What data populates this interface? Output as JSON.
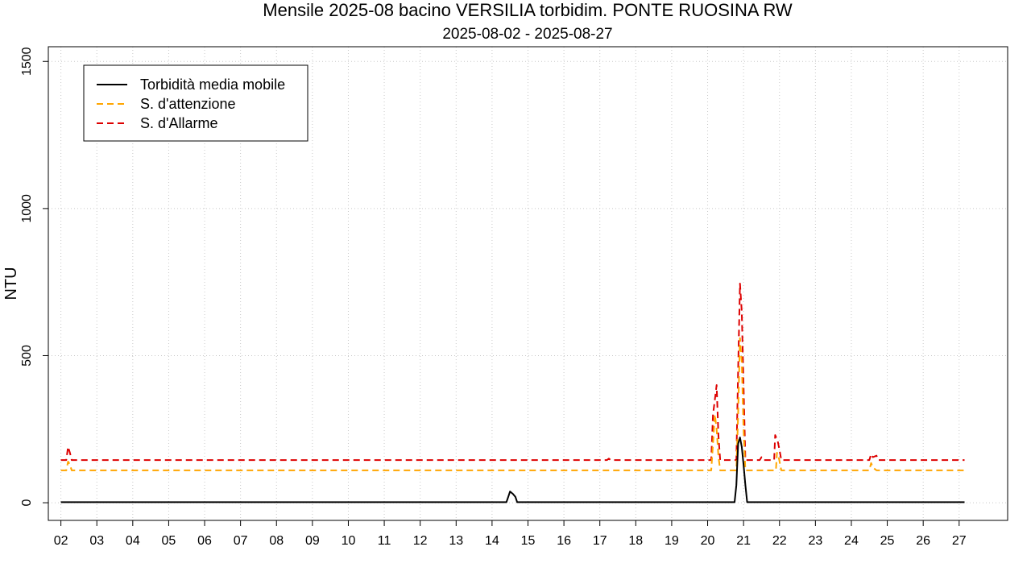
{
  "chart_data": {
    "type": "line",
    "title": "Mensile 2025-08 bacino VERSILIA torbidim. PONTE RUOSINA RW",
    "subtitle": "2025-08-02 - 2025-08-27",
    "xlabel": "",
    "ylabel": "NTU",
    "x_ticks": [
      "02",
      "03",
      "04",
      "05",
      "06",
      "07",
      "08",
      "09",
      "10",
      "11",
      "12",
      "13",
      "14",
      "15",
      "16",
      "17",
      "18",
      "19",
      "20",
      "21",
      "22",
      "23",
      "24",
      "25",
      "26",
      "27"
    ],
    "xlim": [
      1.65,
      28.35
    ],
    "ylim": [
      -60,
      1550
    ],
    "y_ticks": [
      0,
      500,
      1000,
      1500
    ],
    "grid": true,
    "legend_position": "top-left",
    "series": [
      {
        "name": "Torbidità media mobile",
        "color": "#000000",
        "dash": "solid",
        "points": [
          [
            2,
            2
          ],
          [
            14.4,
            2
          ],
          [
            14.45,
            20
          ],
          [
            14.5,
            38
          ],
          [
            14.58,
            30
          ],
          [
            14.65,
            20
          ],
          [
            14.7,
            2
          ],
          [
            20.75,
            2
          ],
          [
            20.8,
            60
          ],
          [
            20.85,
            200
          ],
          [
            20.9,
            222
          ],
          [
            20.95,
            190
          ],
          [
            21.0,
            130
          ],
          [
            21.05,
            60
          ],
          [
            21.1,
            2
          ],
          [
            27.15,
            2
          ]
        ]
      },
      {
        "name": "S. d'attenzione",
        "color": "#FFA500",
        "dash": "dashed",
        "points": [
          [
            2,
            110
          ],
          [
            2.15,
            110
          ],
          [
            2.2,
            140
          ],
          [
            2.25,
            130
          ],
          [
            2.3,
            110
          ],
          [
            20.1,
            110
          ],
          [
            20.15,
            200
          ],
          [
            20.2,
            300
          ],
          [
            20.25,
            250
          ],
          [
            20.3,
            160
          ],
          [
            20.35,
            110
          ],
          [
            20.8,
            110
          ],
          [
            20.85,
            300
          ],
          [
            20.9,
            560
          ],
          [
            20.95,
            480
          ],
          [
            21.0,
            250
          ],
          [
            21.05,
            110
          ],
          [
            21.9,
            110
          ],
          [
            21.93,
            170
          ],
          [
            21.97,
            160
          ],
          [
            22.05,
            110
          ],
          [
            24.5,
            110
          ],
          [
            24.55,
            135
          ],
          [
            24.6,
            120
          ],
          [
            24.7,
            110
          ],
          [
            27.15,
            110
          ]
        ]
      },
      {
        "name": "S. d'Allarme",
        "color": "#DD0000",
        "dash": "dashed",
        "points": [
          [
            2,
            145
          ],
          [
            2.15,
            145
          ],
          [
            2.2,
            190
          ],
          [
            2.25,
            170
          ],
          [
            2.3,
            145
          ],
          [
            17.2,
            145
          ],
          [
            17.25,
            150
          ],
          [
            17.3,
            145
          ],
          [
            20.1,
            145
          ],
          [
            20.15,
            300
          ],
          [
            20.2,
            350
          ],
          [
            20.25,
            400
          ],
          [
            20.3,
            230
          ],
          [
            20.35,
            145
          ],
          [
            20.8,
            145
          ],
          [
            20.85,
            450
          ],
          [
            20.9,
            745
          ],
          [
            20.95,
            650
          ],
          [
            21.0,
            400
          ],
          [
            21.05,
            145
          ],
          [
            21.45,
            145
          ],
          [
            21.5,
            155
          ],
          [
            21.55,
            145
          ],
          [
            21.85,
            145
          ],
          [
            21.88,
            230
          ],
          [
            21.95,
            210
          ],
          [
            22.0,
            180
          ],
          [
            22.05,
            145
          ],
          [
            24.5,
            145
          ],
          [
            24.55,
            165
          ],
          [
            24.6,
            155
          ],
          [
            24.7,
            160
          ],
          [
            24.75,
            145
          ],
          [
            27.15,
            145
          ]
        ]
      }
    ]
  }
}
